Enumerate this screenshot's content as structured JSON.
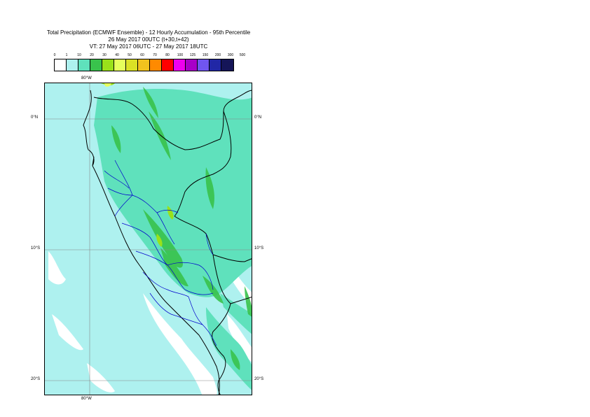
{
  "title": {
    "line1": "Total Precipitation (ECMWF Ensemble) - 12 Hourly Accumulation - 95th Percentile",
    "line2": "26 May 2017 00UTC (t+30,t+42)",
    "line3": "VT: 27 May 2017 06UTC - 27 May 2017 18UTC"
  },
  "legend": {
    "labels": [
      "0",
      "1",
      "10",
      "20",
      "30",
      "40",
      "50",
      "60",
      "70",
      "80",
      "100",
      "125",
      "150",
      "200",
      "300",
      "500"
    ],
    "colors": [
      "#ffffff",
      "#aef1ef",
      "#5fe1bc",
      "#39c34c",
      "#9ae11a",
      "#e6ff5c",
      "#dbe125",
      "#f2c21e",
      "#ff8a00",
      "#ff0000",
      "#ee00ee",
      "#a700c8",
      "#7055f0",
      "#2127a6",
      "#151558"
    ]
  },
  "axes": {
    "top_lon": "80°W",
    "bottom_lon": "80°W",
    "lat_left": [
      "0°N",
      "10°S",
      "20°S"
    ],
    "lat_right": [
      "0°N",
      "10°S",
      "20°S"
    ]
  }
}
